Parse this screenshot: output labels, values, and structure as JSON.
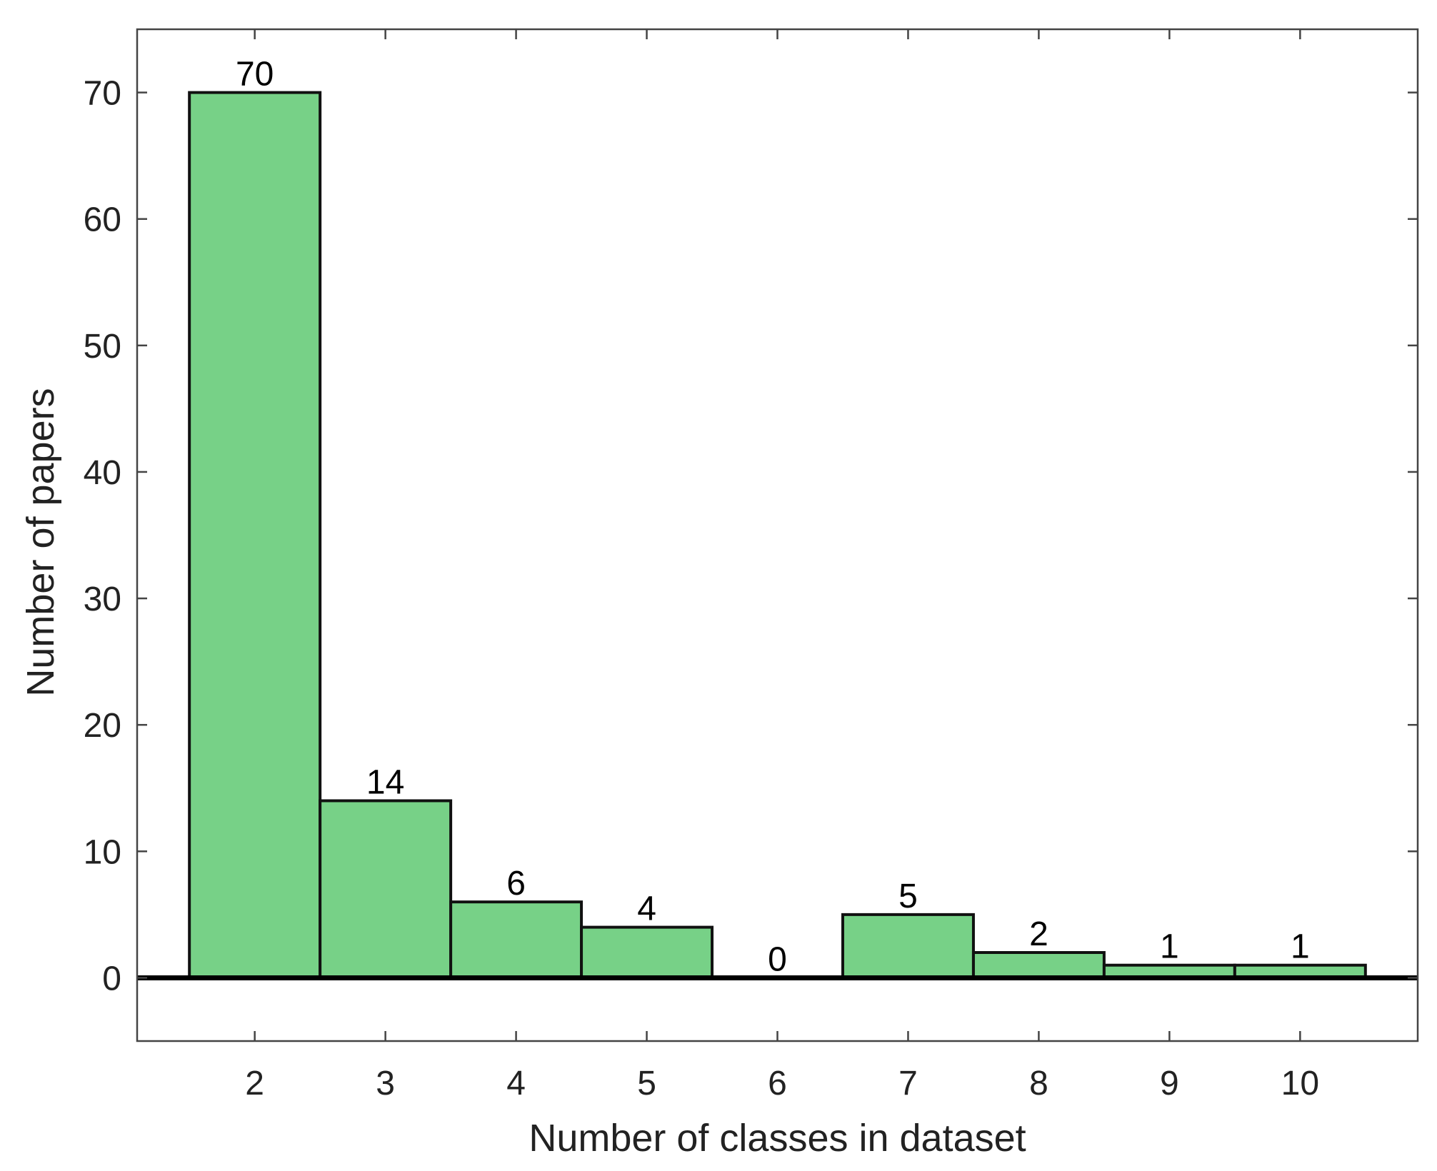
{
  "chart_data": {
    "type": "bar",
    "title": "",
    "xlabel": "Number of classes in dataset",
    "ylabel": "Number of papers",
    "categories": [
      "2",
      "3",
      "4",
      "5",
      "6",
      "7",
      "8",
      "9",
      "10"
    ],
    "x": [
      2,
      3,
      4,
      5,
      6,
      7,
      8,
      9,
      10
    ],
    "values": [
      70,
      14,
      6,
      4,
      0,
      5,
      2,
      1,
      1
    ],
    "data_labels": [
      "70",
      "14",
      "6",
      "4",
      "0",
      "5",
      "2",
      "1",
      "1"
    ],
    "bar_width": 1,
    "xlim": [
      1.1,
      10.9
    ],
    "ylim": [
      -5,
      75
    ],
    "xticks": [
      2,
      3,
      4,
      5,
      6,
      7,
      8,
      9,
      10
    ],
    "yticks": [
      0,
      10,
      20,
      30,
      40,
      50,
      60,
      70
    ],
    "ytick_labels": [
      "0",
      "10",
      "20",
      "30",
      "40",
      "50",
      "60",
      "70"
    ],
    "grid": false,
    "legend": "none",
    "baseline": 0,
    "colors": {
      "bar_fill": "#77d187",
      "bar_edge": "#111111",
      "axis": "#444444",
      "baseline": "#000000",
      "text": "#222222"
    }
  }
}
